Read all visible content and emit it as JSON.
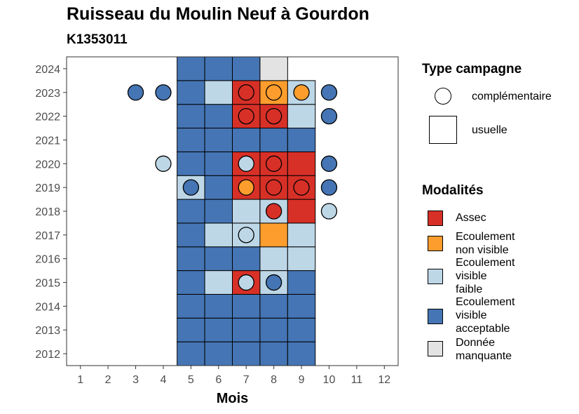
{
  "chart_data": {
    "type": "heatmap",
    "title": "Ruisseau du Moulin Neuf à Gourdon",
    "subtitle": "K1353011",
    "xlabel": "Mois",
    "ylabel": "",
    "x_ticks": [
      1,
      2,
      3,
      4,
      5,
      6,
      7,
      8,
      9,
      10,
      11,
      12
    ],
    "y_ticks": [
      2012,
      2013,
      2014,
      2015,
      2016,
      2017,
      2018,
      2019,
      2020,
      2021,
      2022,
      2023,
      2024
    ],
    "xlim": [
      0.5,
      12.5
    ],
    "ylim": [
      2011.5,
      2024.5
    ],
    "grid": false,
    "legend_placement": "right",
    "legend_type_title": "Type campagne",
    "legend_modalites_title": "Modalités",
    "types": [
      {
        "key": "complementaire",
        "label": "complémentaire",
        "shape": "circle"
      },
      {
        "key": "usuelle",
        "label": "usuelle",
        "shape": "square"
      }
    ],
    "modalites": [
      {
        "key": "assec",
        "label": "Assec",
        "color": "#d73027"
      },
      {
        "key": "ecnv",
        "label": "Ecoulement\nnon visible",
        "color": "#fd9d2d"
      },
      {
        "key": "ecvf",
        "label": "Ecoulement\nvisible\nfaible",
        "color": "#bdd7e7"
      },
      {
        "key": "ecva",
        "label": "Ecoulement\nvisible\nacceptable",
        "color": "#4575b4"
      },
      {
        "key": "nd",
        "label": "Donnée\nmanquante",
        "color": "#e3e3e3"
      }
    ],
    "usuelle": [
      {
        "year": 2012,
        "month": 5,
        "mod": "ecva"
      },
      {
        "year": 2012,
        "month": 6,
        "mod": "ecva"
      },
      {
        "year": 2012,
        "month": 7,
        "mod": "ecva"
      },
      {
        "year": 2012,
        "month": 8,
        "mod": "ecva"
      },
      {
        "year": 2012,
        "month": 9,
        "mod": "ecva"
      },
      {
        "year": 2013,
        "month": 5,
        "mod": "ecva"
      },
      {
        "year": 2013,
        "month": 6,
        "mod": "ecva"
      },
      {
        "year": 2013,
        "month": 7,
        "mod": "ecva"
      },
      {
        "year": 2013,
        "month": 8,
        "mod": "ecva"
      },
      {
        "year": 2013,
        "month": 9,
        "mod": "ecva"
      },
      {
        "year": 2014,
        "month": 5,
        "mod": "ecva"
      },
      {
        "year": 2014,
        "month": 6,
        "mod": "ecva"
      },
      {
        "year": 2014,
        "month": 7,
        "mod": "ecva"
      },
      {
        "year": 2014,
        "month": 8,
        "mod": "ecva"
      },
      {
        "year": 2014,
        "month": 9,
        "mod": "ecva"
      },
      {
        "year": 2015,
        "month": 5,
        "mod": "ecva"
      },
      {
        "year": 2015,
        "month": 6,
        "mod": "ecvf"
      },
      {
        "year": 2015,
        "month": 7,
        "mod": "assec"
      },
      {
        "year": 2015,
        "month": 8,
        "mod": "ecvf"
      },
      {
        "year": 2015,
        "month": 9,
        "mod": "ecva"
      },
      {
        "year": 2016,
        "month": 5,
        "mod": "ecva"
      },
      {
        "year": 2016,
        "month": 6,
        "mod": "ecva"
      },
      {
        "year": 2016,
        "month": 7,
        "mod": "ecva"
      },
      {
        "year": 2016,
        "month": 8,
        "mod": "ecvf"
      },
      {
        "year": 2016,
        "month": 9,
        "mod": "ecvf"
      },
      {
        "year": 2017,
        "month": 5,
        "mod": "ecva"
      },
      {
        "year": 2017,
        "month": 6,
        "mod": "ecvf"
      },
      {
        "year": 2017,
        "month": 7,
        "mod": "ecvf"
      },
      {
        "year": 2017,
        "month": 8,
        "mod": "ecnv"
      },
      {
        "year": 2017,
        "month": 9,
        "mod": "ecvf"
      },
      {
        "year": 2018,
        "month": 5,
        "mod": "ecva"
      },
      {
        "year": 2018,
        "month": 6,
        "mod": "ecva"
      },
      {
        "year": 2018,
        "month": 7,
        "mod": "ecvf"
      },
      {
        "year": 2018,
        "month": 8,
        "mod": "ecvf"
      },
      {
        "year": 2018,
        "month": 9,
        "mod": "assec"
      },
      {
        "year": 2019,
        "month": 5,
        "mod": "ecvf"
      },
      {
        "year": 2019,
        "month": 6,
        "mod": "ecva"
      },
      {
        "year": 2019,
        "month": 7,
        "mod": "assec"
      },
      {
        "year": 2019,
        "month": 8,
        "mod": "assec"
      },
      {
        "year": 2019,
        "month": 9,
        "mod": "assec"
      },
      {
        "year": 2020,
        "month": 5,
        "mod": "ecva"
      },
      {
        "year": 2020,
        "month": 6,
        "mod": "ecva"
      },
      {
        "year": 2020,
        "month": 7,
        "mod": "assec"
      },
      {
        "year": 2020,
        "month": 8,
        "mod": "assec"
      },
      {
        "year": 2020,
        "month": 9,
        "mod": "assec"
      },
      {
        "year": 2021,
        "month": 5,
        "mod": "ecva"
      },
      {
        "year": 2021,
        "month": 6,
        "mod": "ecva"
      },
      {
        "year": 2021,
        "month": 7,
        "mod": "ecva"
      },
      {
        "year": 2021,
        "month": 8,
        "mod": "ecva"
      },
      {
        "year": 2021,
        "month": 9,
        "mod": "ecva"
      },
      {
        "year": 2022,
        "month": 5,
        "mod": "ecva"
      },
      {
        "year": 2022,
        "month": 6,
        "mod": "ecva"
      },
      {
        "year": 2022,
        "month": 7,
        "mod": "assec"
      },
      {
        "year": 2022,
        "month": 8,
        "mod": "assec"
      },
      {
        "year": 2022,
        "month": 9,
        "mod": "ecvf"
      },
      {
        "year": 2023,
        "month": 5,
        "mod": "ecva"
      },
      {
        "year": 2023,
        "month": 6,
        "mod": "ecvf"
      },
      {
        "year": 2023,
        "month": 7,
        "mod": "assec"
      },
      {
        "year": 2023,
        "month": 8,
        "mod": "ecnv"
      },
      {
        "year": 2023,
        "month": 9,
        "mod": "ecvf"
      },
      {
        "year": 2024,
        "month": 5,
        "mod": "ecva"
      },
      {
        "year": 2024,
        "month": 6,
        "mod": "ecva"
      },
      {
        "year": 2024,
        "month": 7,
        "mod": "ecva"
      },
      {
        "year": 2024,
        "month": 8,
        "mod": "nd"
      }
    ],
    "complementaire": [
      {
        "year": 2023,
        "month": 3,
        "mod": "ecva"
      },
      {
        "year": 2023,
        "month": 4,
        "mod": "ecva"
      },
      {
        "year": 2023,
        "month": 7,
        "mod": "assec"
      },
      {
        "year": 2023,
        "month": 8,
        "mod": "ecnv"
      },
      {
        "year": 2023,
        "month": 9,
        "mod": "ecnv"
      },
      {
        "year": 2023,
        "month": 10,
        "mod": "ecva"
      },
      {
        "year": 2022,
        "month": 7,
        "mod": "assec"
      },
      {
        "year": 2022,
        "month": 8,
        "mod": "assec"
      },
      {
        "year": 2022,
        "month": 10,
        "mod": "ecva"
      },
      {
        "year": 2020,
        "month": 4,
        "mod": "ecvf"
      },
      {
        "year": 2020,
        "month": 7,
        "mod": "ecvf"
      },
      {
        "year": 2020,
        "month": 8,
        "mod": "assec"
      },
      {
        "year": 2020,
        "month": 10,
        "mod": "ecva"
      },
      {
        "year": 2019,
        "month": 5,
        "mod": "ecva"
      },
      {
        "year": 2019,
        "month": 7,
        "mod": "ecnv"
      },
      {
        "year": 2019,
        "month": 8,
        "mod": "assec"
      },
      {
        "year": 2019,
        "month": 9,
        "mod": "assec"
      },
      {
        "year": 2019,
        "month": 10,
        "mod": "ecva"
      },
      {
        "year": 2018,
        "month": 8,
        "mod": "assec"
      },
      {
        "year": 2018,
        "month": 10,
        "mod": "ecvf"
      },
      {
        "year": 2017,
        "month": 7,
        "mod": "ecvf"
      },
      {
        "year": 2015,
        "month": 7,
        "mod": "ecvf"
      },
      {
        "year": 2015,
        "month": 8,
        "mod": "ecva"
      }
    ]
  }
}
